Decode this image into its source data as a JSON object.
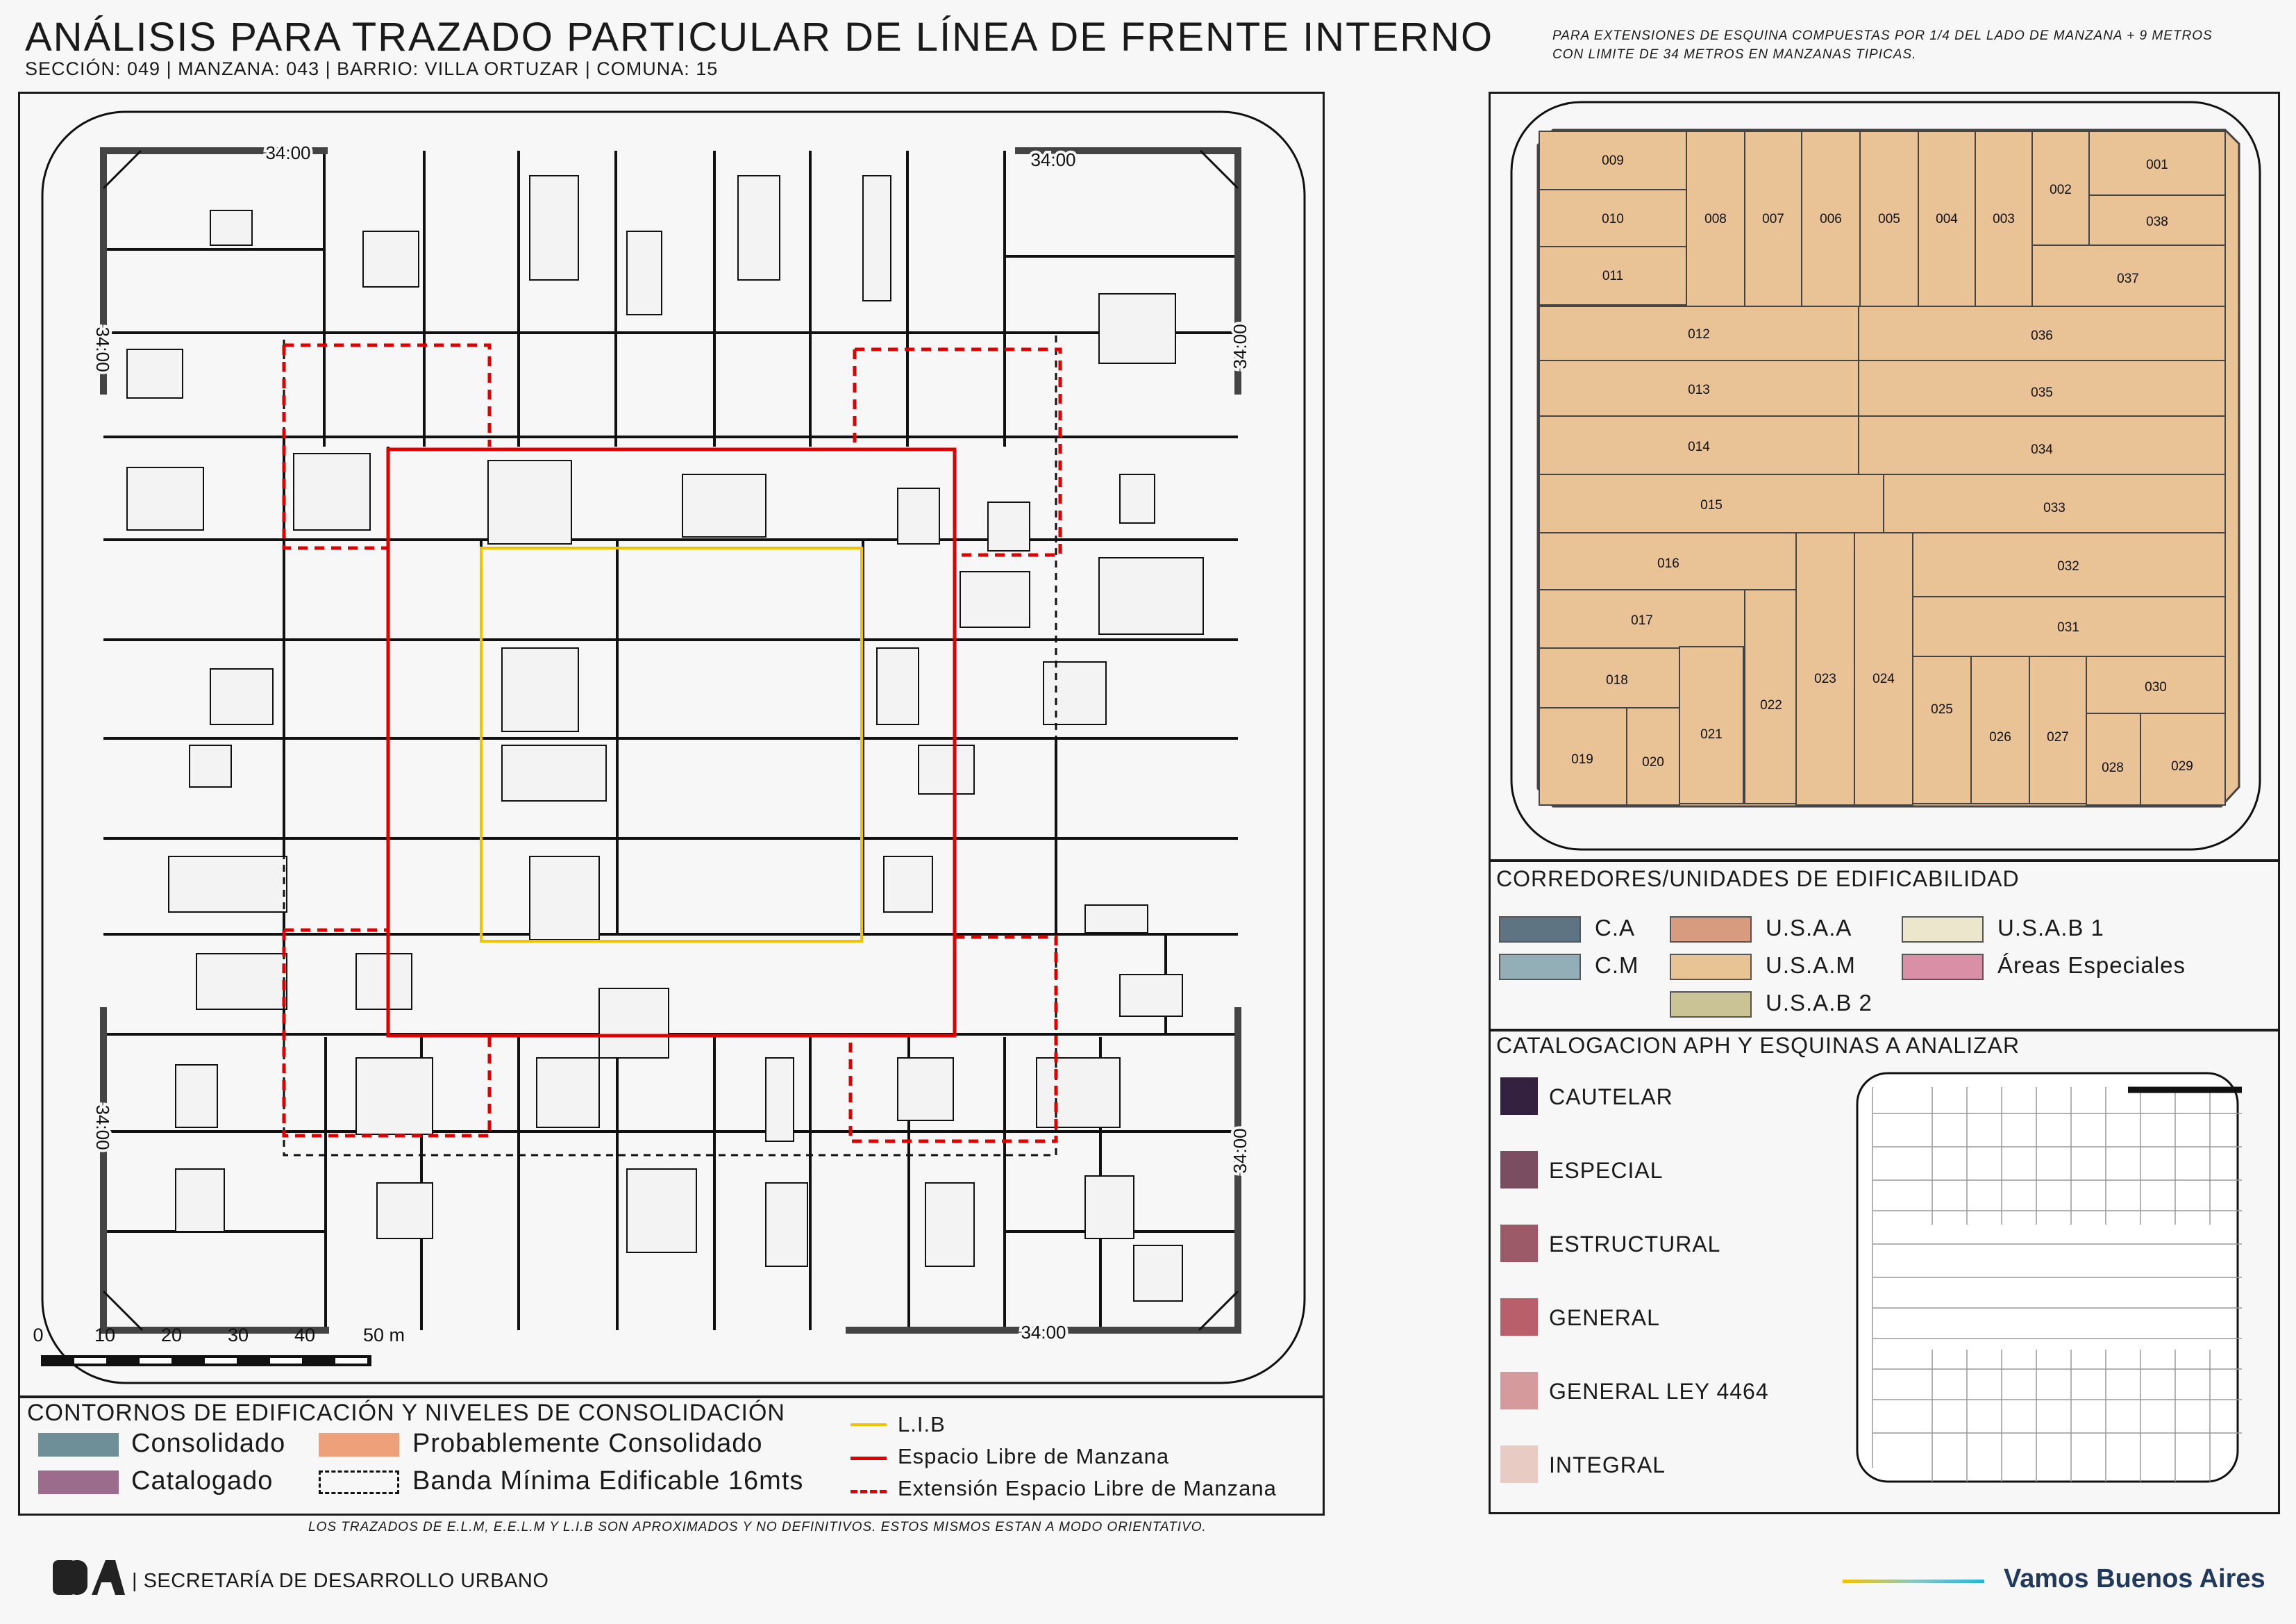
{
  "header": {
    "title": "ANÁLISIS PARA TRAZADO PARTICULAR DE LÍNEA DE FRENTE INTERNO",
    "subtitle": "SECCIÓN: 049 |  MANZANA: 043 | BARRIO: VILLA ORTUZAR | COMUNA: 15",
    "note": "PARA EXTENSIONES DE ESQUINA COMPUESTAS POR 1/4 DEL LADO DE MANZANA + 9 METROS CON LIMITE DE 34 METROS EN MANZANAS TIPICAS."
  },
  "map": {
    "dimension_label": "34:00",
    "scale": {
      "ticks": [
        "0",
        "10",
        "20",
        "30",
        "40",
        "50 m"
      ]
    },
    "colors": {
      "lib": "#f2c200",
      "elm": "#e00000",
      "building": "#f3f3f3",
      "outline": "#111111"
    }
  },
  "legend_left": {
    "heading": "CONTORNOS DE EDIFICACIÓN Y NIVELES DE CONSOLIDACIÓN",
    "items": [
      {
        "label": "Consolidado",
        "color": "#6e8e98"
      },
      {
        "label": "Probablemente Consolidado",
        "color": "#eea07a"
      },
      {
        "label": "Catalogado",
        "color": "#9c6c8c"
      },
      {
        "label": "Banda Mínima Edificable 16mts",
        "color": "none"
      }
    ],
    "lines": [
      {
        "label": "L.I.B",
        "color": "#f2c200"
      },
      {
        "label": "Espacio Libre de Manzana",
        "color": "#e00000"
      },
      {
        "label": "Extensión Espacio Libre de Manzana",
        "color": "#e00000"
      }
    ]
  },
  "footnote": "LOS TRAZADOS DE E.L.M, E.E.L.M Y L.I.B SON APROXIMADOS Y NO DEFINITIVOS. ESTOS MISMOS ESTAN A MODO ORIENTATIVO.",
  "parcels": {
    "fill": "#e9c396",
    "labels": [
      "001",
      "002",
      "003",
      "004",
      "005",
      "006",
      "007",
      "008",
      "009",
      "010",
      "011",
      "012",
      "013",
      "014",
      "015",
      "016",
      "017",
      "018",
      "019",
      "020",
      "021",
      "022",
      "023",
      "024",
      "025",
      "026",
      "027",
      "028",
      "029",
      "030",
      "031",
      "032",
      "033",
      "034",
      "035",
      "036",
      "037",
      "038"
    ]
  },
  "corredores": {
    "heading": "CORREDORES/UNIDADES DE EDIFICABILIDAD",
    "items": [
      {
        "label": "C.A",
        "color": "#5f7482"
      },
      {
        "label": "C.M",
        "color": "#93aeb6"
      },
      {
        "label": "U.S.A.A",
        "color": "#d79c80"
      },
      {
        "label": "U.S.A.M",
        "color": "#e8c393"
      },
      {
        "label": "U.S.A.B 2",
        "color": "#c9c396"
      },
      {
        "label": "U.S.A.B 1",
        "color": "#ece6cd"
      },
      {
        "label": "Áreas Especiales",
        "color": "#d98fa6"
      }
    ]
  },
  "catalogacion": {
    "heading": "CATALOGACION APH Y ESQUINAS A ANALIZAR",
    "items": [
      {
        "label": "CAUTELAR",
        "color": "#33213f"
      },
      {
        "label": "ESPECIAL",
        "color": "#7a4e60"
      },
      {
        "label": "ESTRUCTURAL",
        "color": "#9c5a69"
      },
      {
        "label": "GENERAL",
        "color": "#b95e6b"
      },
      {
        "label": "GENERAL LEY 4464",
        "color": "#d49a9c"
      },
      {
        "label": "INTEGRAL",
        "color": "#e8cbc2"
      }
    ]
  },
  "footer": {
    "logo": "BA",
    "secretaria": "| SECRETARÍA DE DESARROLLO URBANO",
    "brand": "Vamos Buenos Aires"
  }
}
